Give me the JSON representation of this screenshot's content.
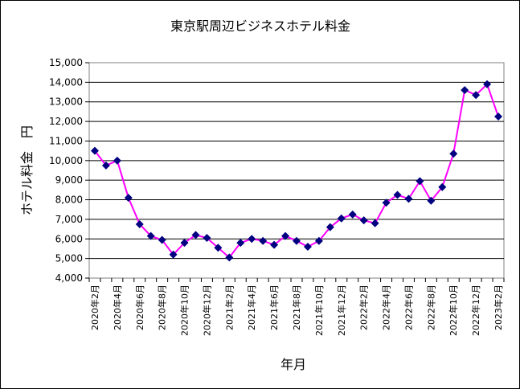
{
  "chart_data": {
    "type": "line",
    "title": "東京駅周辺ビジネスホテル料金",
    "xlabel": "年月",
    "ylabel": "ホテル料金　円",
    "ylim": [
      4000,
      15000
    ],
    "y_ticks": [
      4000,
      5000,
      6000,
      7000,
      8000,
      9000,
      10000,
      11000,
      12000,
      13000,
      14000,
      15000
    ],
    "y_tick_labels": [
      "4,000",
      "5,000",
      "6,000",
      "7,000",
      "8,000",
      "9,000",
      "10,000",
      "11,000",
      "12,000",
      "13,000",
      "14,000",
      "15,000"
    ],
    "grid": true,
    "x_tick_labels": [
      "2020年2月",
      "2020年4月",
      "2020年6月",
      "2020年8月",
      "2020年10月",
      "2020年12月",
      "2021年2月",
      "2021年4月",
      "2021年6月",
      "2021年8月",
      "2021年10月",
      "2021年12月",
      "2022年2月",
      "2022年4月",
      "2022年6月",
      "2022年8月",
      "2022年10月",
      "2022年12月",
      "2023年2月"
    ],
    "series": [
      {
        "name": "ホテル料金",
        "line_color": "#ff00ff",
        "marker_color": "#000080",
        "values": [
          10500,
          9750,
          10000,
          8100,
          6750,
          6150,
          5950,
          5200,
          5800,
          6200,
          6050,
          5550,
          5050,
          5800,
          6000,
          5900,
          5700,
          6150,
          5900,
          5600,
          5900,
          6600,
          7050,
          7250,
          6950,
          6800,
          7850,
          8250,
          8050,
          8950,
          7950,
          8650,
          10350,
          13600,
          13350,
          13900,
          12250
        ]
      }
    ]
  }
}
